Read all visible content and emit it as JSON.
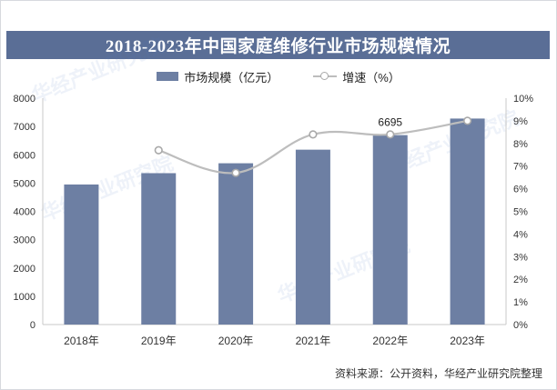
{
  "title": "2018-2023年中国家庭维修行业市场规模情况",
  "legend": {
    "bar_label": "市场规模（亿元）",
    "line_label": "增速（%）"
  },
  "source": "资料来源：公开资料，华经产业研究院整理",
  "watermark": "华经产业研究院",
  "colors": {
    "title_bg": "#5a6e96",
    "bar": "#6d7fa3",
    "line": "#bdbdbd",
    "marker": "#a9a9a9"
  },
  "chart_data": {
    "type": "bar+line",
    "categories": [
      "2018年",
      "2019年",
      "2020年",
      "2021年",
      "2022年",
      "2023年"
    ],
    "series": [
      {
        "name": "市场规模（亿元）",
        "type": "bar",
        "axis": "left",
        "values": [
          4950,
          5350,
          5700,
          6180,
          6695,
          7280
        ]
      },
      {
        "name": "增速（%）",
        "type": "line",
        "axis": "right",
        "values": [
          null,
          7.7,
          6.7,
          8.4,
          8.4,
          9.0
        ]
      }
    ],
    "data_labels": [
      {
        "series": 0,
        "index": 4,
        "text": "6695"
      }
    ],
    "left_axis": {
      "min": 0,
      "max": 8000,
      "ticks": [
        0,
        1000,
        2000,
        3000,
        4000,
        5000,
        6000,
        7000,
        8000
      ]
    },
    "right_axis": {
      "min": 0,
      "max": 10,
      "ticks": [
        "0%",
        "1%",
        "2%",
        "3%",
        "4%",
        "5%",
        "6%",
        "7%",
        "8%",
        "9%",
        "10%"
      ]
    },
    "grid": false,
    "legend_position": "top"
  }
}
